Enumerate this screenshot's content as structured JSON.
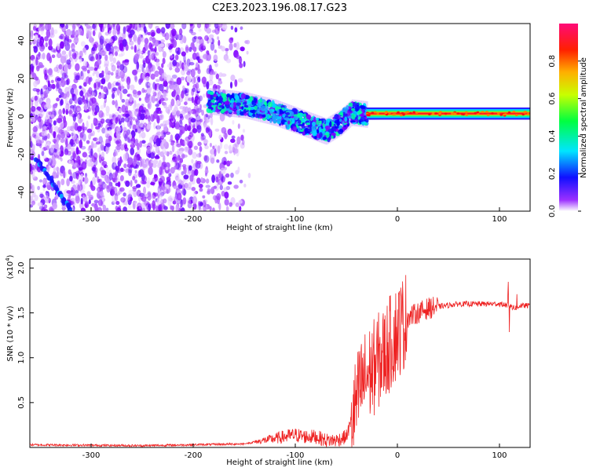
{
  "title": "C2E3.2023.196.08.17.G23",
  "chart_data": [
    {
      "type": "heatmap",
      "xlabel": "Height of straight line (km)",
      "ylabel": "Frequency (Hz)",
      "xlim": [
        -360,
        130
      ],
      "ylim": [
        -50,
        49
      ],
      "xticks": [
        -300,
        -200,
        -100,
        0,
        100
      ],
      "yticks": [
        -40,
        -20,
        0,
        20,
        40
      ],
      "colorbar": {
        "label": "Normalized spectral amplitude",
        "range": [
          0.0,
          1.0
        ],
        "ticks": [
          "0.0",
          "0.2",
          "0.4",
          "0.6",
          "0.8"
        ],
        "colors": [
          "#ffffff",
          "#8000ff",
          "#0000ff",
          "#00ffff",
          "#00ff00",
          "#ffff00",
          "#ff8000",
          "#ff0000",
          "#ff0080"
        ]
      },
      "ridge": {
        "description_points_x": [
          -185,
          -150,
          -120,
          -90,
          -70,
          -55,
          -45,
          -30,
          0,
          50,
          100,
          130
        ],
        "description_points_y": [
          8,
          6,
          2,
          -4,
          -8,
          -3,
          2,
          1,
          1.5,
          1.5,
          1.5,
          1.5
        ]
      }
    },
    {
      "type": "line",
      "xlabel": "Height of straight line (km)",
      "ylabel": "SNR (10 * v/v)",
      "yscale_label": "(x10",
      "yscale_exp": "4",
      "yscale_close": ")",
      "xlim": [
        -360,
        130
      ],
      "ylim": [
        0,
        2.1
      ],
      "xticks": [
        -300,
        -200,
        -100,
        0,
        100
      ],
      "yticks": [
        "0.5",
        "1.0",
        "1.5",
        "2.0"
      ],
      "color": "#ee2222",
      "anchors": {
        "x": [
          -360,
          -250,
          -200,
          -150,
          -130,
          -110,
          -100,
          -90,
          -80,
          -70,
          -60,
          -50,
          -45,
          -40,
          -35,
          -30,
          -25,
          -20,
          -15,
          -10,
          -5,
          0,
          10,
          20,
          30,
          40,
          60,
          80,
          100,
          110,
          115,
          120,
          130
        ],
        "y": [
          0.03,
          0.02,
          0.03,
          0.04,
          0.08,
          0.12,
          0.14,
          0.12,
          0.12,
          0.08,
          0.08,
          0.12,
          0.3,
          0.5,
          0.7,
          0.8,
          0.85,
          0.95,
          1.0,
          1.1,
          1.2,
          1.3,
          1.45,
          1.5,
          1.55,
          1.57,
          1.6,
          1.6,
          1.6,
          1.58,
          1.55,
          1.58,
          1.58
        ]
      }
    }
  ]
}
